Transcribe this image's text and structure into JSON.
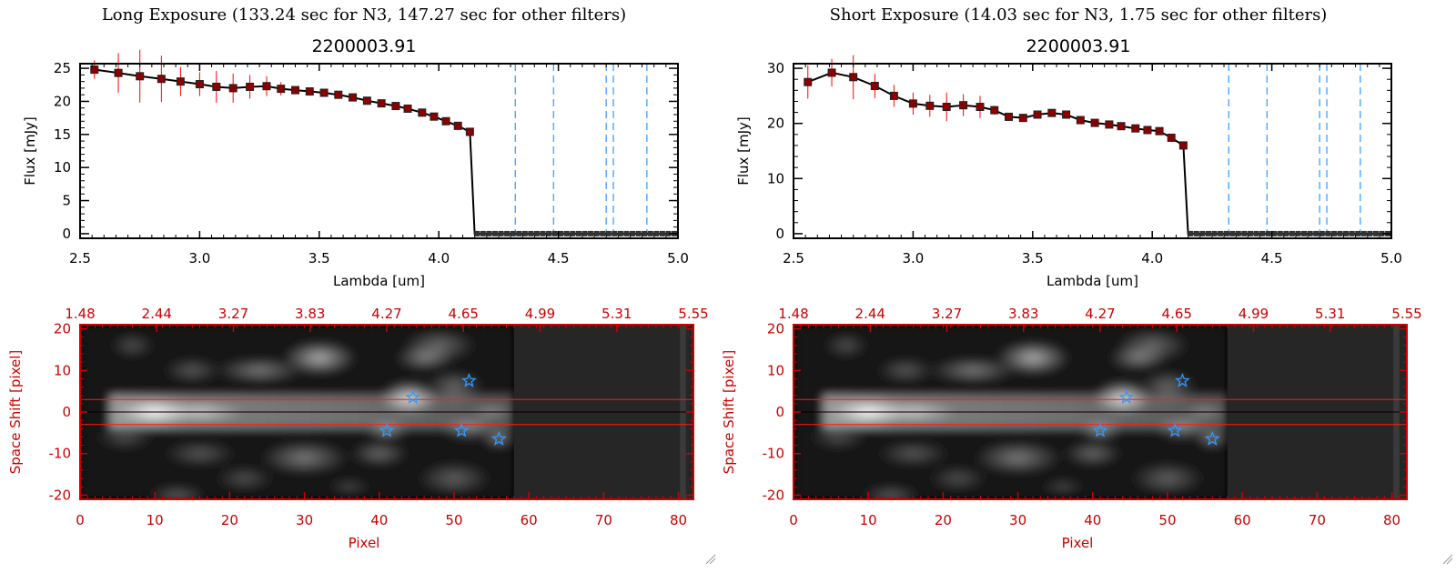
{
  "panels": [
    {
      "title": "Long Exposure (133.24 sec for N3, 147.27 sec for other filters)",
      "object_id": "2200003.91",
      "spectrum": {
        "ylim": [
          0,
          25
        ],
        "yticks": [
          0,
          5,
          10,
          15,
          20,
          25
        ]
      },
      "stars": [
        [
          44.5,
          3.5
        ],
        [
          52,
          7.5
        ],
        [
          41,
          -4.5
        ],
        [
          51,
          -4.5
        ],
        [
          56,
          -6.5
        ]
      ]
    },
    {
      "title": "Short Exposure (14.03 sec for N3, 1.75 sec for other filters)",
      "object_id": "2200003.91",
      "spectrum": {
        "ylim": [
          0,
          30
        ],
        "yticks": [
          0,
          10,
          20,
          30
        ]
      },
      "stars": [
        [
          44.5,
          3.5
        ],
        [
          52,
          7.5
        ],
        [
          41,
          -4.5
        ],
        [
          51,
          -4.5
        ],
        [
          56,
          -6.5
        ]
      ]
    }
  ],
  "chart_data": [
    {
      "type": "line",
      "title": "2200003.91",
      "xlabel": "Lambda [um]",
      "ylabel": "Flux [mJy]",
      "xlim": [
        2.5,
        5.0
      ],
      "ylim": [
        0,
        25
      ],
      "xticks": [
        2.5,
        3.0,
        3.5,
        4.0,
        4.5,
        5.0
      ],
      "yticks": [
        0,
        5,
        10,
        15,
        20,
        25
      ],
      "vlines": [
        4.32,
        4.48,
        4.7,
        4.73,
        4.87
      ],
      "x": [
        2.56,
        2.66,
        2.75,
        2.84,
        2.92,
        3.0,
        3.07,
        3.14,
        3.21,
        3.28,
        3.34,
        3.4,
        3.46,
        3.52,
        3.58,
        3.64,
        3.7,
        3.76,
        3.82,
        3.87,
        3.93,
        3.98,
        4.03,
        4.08,
        4.13,
        4.15,
        4.2,
        4.3,
        4.4,
        4.5,
        4.6,
        4.7,
        4.8,
        4.9,
        5.0
      ],
      "y": [
        24.8,
        24.3,
        23.8,
        23.4,
        23.0,
        22.6,
        22.2,
        22.0,
        22.2,
        22.3,
        21.9,
        21.7,
        21.5,
        21.3,
        21.0,
        20.6,
        20.1,
        19.7,
        19.3,
        18.9,
        18.3,
        17.7,
        17.0,
        16.3,
        15.4,
        0,
        0,
        0,
        0,
        0,
        0,
        0,
        0,
        0,
        0
      ],
      "yerr": [
        1.4,
        3.0,
        4.0,
        3.5,
        2.2,
        1.8,
        2.4,
        2.2,
        1.8,
        1.5,
        1.0,
        0.5,
        0.4,
        0.3,
        0.3,
        0.3,
        0.3,
        0.3,
        0.3,
        0.3,
        0.3,
        0.3,
        0.3,
        0.3,
        0.3,
        0,
        0,
        0,
        0,
        0,
        0,
        0,
        0,
        0,
        0
      ]
    },
    {
      "type": "heatmap",
      "xlabel": "Pixel",
      "ylabel": "Space Shift [pixel]",
      "xlim": [
        0,
        82
      ],
      "ylim": [
        -21,
        21
      ],
      "xticks": [
        0,
        10,
        20,
        30,
        40,
        50,
        60,
        70,
        80
      ],
      "yticks": [
        -20,
        -10,
        0,
        10,
        20
      ],
      "top_tick_labels": [
        "1.48",
        "2.44",
        "3.27",
        "3.83",
        "4.27",
        "4.65",
        "4.99",
        "5.31",
        "5.55"
      ],
      "aperture": [
        -3,
        3
      ]
    },
    {
      "type": "line",
      "title": "2200003.91",
      "xlabel": "Lambda [um]",
      "ylabel": "Flux [mJy]",
      "xlim": [
        2.5,
        5.0
      ],
      "ylim": [
        0,
        30
      ],
      "xticks": [
        2.5,
        3.0,
        3.5,
        4.0,
        4.5,
        5.0
      ],
      "yticks": [
        0,
        10,
        20,
        30
      ],
      "vlines": [
        4.32,
        4.48,
        4.7,
        4.73,
        4.87
      ],
      "x": [
        2.56,
        2.66,
        2.75,
        2.84,
        2.92,
        3.0,
        3.07,
        3.14,
        3.21,
        3.28,
        3.34,
        3.4,
        3.46,
        3.52,
        3.58,
        3.64,
        3.7,
        3.76,
        3.82,
        3.87,
        3.93,
        3.98,
        4.03,
        4.08,
        4.13,
        4.15,
        4.2,
        4.3,
        4.4,
        4.5,
        4.6,
        4.7,
        4.8,
        4.9,
        5.0
      ],
      "y": [
        27.5,
        29.2,
        28.4,
        26.8,
        25.0,
        23.6,
        23.2,
        23.0,
        23.3,
        23.0,
        22.4,
        21.2,
        21.0,
        21.6,
        21.9,
        21.6,
        20.6,
        20.1,
        19.8,
        19.5,
        19.1,
        18.8,
        18.6,
        17.4,
        16.0,
        0,
        0,
        0,
        0,
        0,
        0,
        0,
        0,
        0,
        0
      ],
      "yerr": [
        3.0,
        2.5,
        4.0,
        2.2,
        2.0,
        2.0,
        2.0,
        2.6,
        2.0,
        2.0,
        0.8,
        0.4,
        0.4,
        0.4,
        0.4,
        0.4,
        0.4,
        0.4,
        0.4,
        0.4,
        0.4,
        0.4,
        0.4,
        0.4,
        0.4,
        0,
        0,
        0,
        0,
        0,
        0,
        0,
        0,
        0,
        0
      ]
    },
    {
      "type": "heatmap",
      "xlabel": "Pixel",
      "ylabel": "Space Shift [pixel]",
      "xlim": [
        0,
        82
      ],
      "ylim": [
        -21,
        21
      ],
      "xticks": [
        0,
        10,
        20,
        30,
        40,
        50,
        60,
        70,
        80
      ],
      "yticks": [
        -20,
        -10,
        0,
        10,
        20
      ],
      "top_tick_labels": [
        "1.48",
        "2.44",
        "3.27",
        "3.83",
        "4.27",
        "4.65",
        "4.99",
        "5.31",
        "5.55"
      ],
      "aperture": [
        -3,
        3
      ]
    }
  ],
  "colors": {
    "series_line": "#000000",
    "markers": "#8b0000",
    "errorbars": "#ff0000",
    "vlines": "#4da6ff",
    "image_axes": "#cc0000",
    "stars": "#3399ff"
  }
}
